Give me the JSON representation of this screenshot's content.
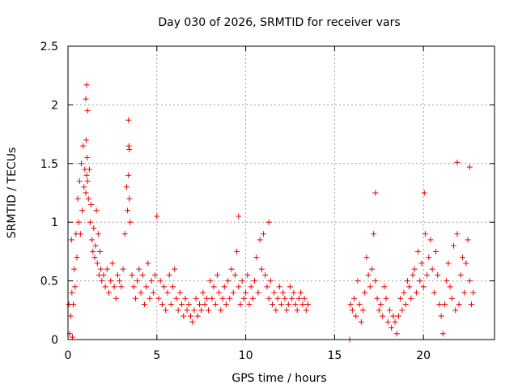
{
  "chart_data": {
    "type": "scatter",
    "title": "Day 030 of 2026, SRMTID for receiver vars",
    "xlabel": "GPS time / hours",
    "ylabel": "SRMTID / TECUs",
    "xlim": [
      0,
      24
    ],
    "ylim": [
      0,
      2.5
    ],
    "xticks": [
      0,
      5,
      10,
      15,
      20
    ],
    "xtick_labels": [
      "0",
      "5",
      "10",
      "15",
      "20"
    ],
    "yticks": [
      0,
      0.5,
      1,
      1.5,
      2,
      2.5
    ],
    "ytick_labels": [
      "0",
      "0.5",
      "1",
      "1.5",
      "2",
      "2.5"
    ],
    "grid": true,
    "marker": "+",
    "color": "#ee0000",
    "series": [
      {
        "name": "SRMTID",
        "x": [
          0.05,
          0.1,
          0.15,
          0.2,
          0.22,
          0.25,
          0.3,
          0.35,
          0.4,
          0.45,
          0.5,
          0.55,
          0.6,
          0.65,
          0.7,
          0.75,
          0.8,
          0.85,
          0.9,
          0.95,
          1.0,
          1.02,
          1.05,
          1.08,
          1.1,
          1.15,
          1.2,
          1.25,
          1.3,
          1.35,
          1.4,
          1.45,
          1.5,
          1.55,
          1.6,
          1.65,
          1.7,
          1.75,
          1.8,
          1.85,
          1.9,
          2.0,
          2.1,
          2.2,
          2.3,
          2.4,
          2.5,
          2.6,
          2.7,
          2.8,
          2.9,
          3.0,
          3.1,
          3.2,
          3.3,
          3.35,
          3.4,
          3.45,
          3.5,
          3.6,
          3.7,
          3.8,
          3.9,
          4.0,
          4.1,
          4.2,
          4.3,
          4.4,
          4.5,
          4.6,
          4.7,
          4.8,
          4.9,
          5.0,
          5.1,
          5.2,
          5.3,
          5.4,
          5.5,
          5.6,
          5.7,
          5.8,
          5.9,
          6.0,
          6.1,
          6.2,
          6.3,
          6.4,
          6.5,
          6.6,
          6.7,
          6.8,
          6.9,
          7.0,
          7.1,
          7.2,
          7.3,
          7.4,
          7.5,
          7.6,
          7.7,
          7.8,
          7.9,
          8.0,
          8.1,
          8.2,
          8.3,
          8.4,
          8.5,
          8.6,
          8.7,
          8.8,
          8.9,
          9.0,
          9.1,
          9.2,
          9.3,
          9.4,
          9.5,
          9.6,
          9.7,
          9.8,
          9.9,
          10.0,
          10.1,
          10.2,
          10.3,
          10.4,
          10.5,
          10.6,
          10.7,
          10.8,
          10.9,
          11.0,
          11.1,
          11.2,
          11.3,
          11.4,
          11.5,
          11.6,
          11.7,
          11.8,
          11.9,
          12.0,
          12.1,
          12.2,
          12.3,
          12.4,
          12.5,
          12.6,
          12.7,
          12.8,
          12.9,
          13.0,
          13.1,
          13.2,
          13.3,
          13.4,
          13.5,
          15.85,
          15.9,
          16.0,
          16.1,
          16.2,
          16.3,
          16.4,
          16.5,
          16.6,
          16.7,
          16.8,
          16.9,
          17.0,
          17.1,
          17.2,
          17.3,
          17.4,
          17.5,
          17.6,
          17.7,
          17.8,
          17.9,
          18.0,
          18.1,
          18.2,
          18.3,
          18.4,
          18.5,
          18.6,
          18.7,
          18.8,
          18.9,
          19.0,
          19.1,
          19.2,
          19.3,
          19.4,
          19.5,
          19.6,
          19.7,
          19.8,
          19.9,
          20.0,
          20.1,
          20.2,
          20.3,
          20.4,
          20.5,
          20.6,
          20.7,
          20.8,
          20.9,
          21.0,
          21.1,
          21.2,
          21.3,
          21.4,
          21.5,
          21.6,
          21.7,
          21.8,
          21.9,
          22.0,
          22.1,
          22.2,
          22.3,
          22.4,
          22.5,
          22.6,
          22.7,
          22.8,
          1.0,
          1.05,
          1.1,
          3.4,
          3.42,
          3.45,
          9.6,
          11.3,
          17.3,
          20.05,
          21.9,
          22.6
        ],
        "y": [
          0.3,
          0.05,
          0.2,
          0.85,
          0.4,
          0.02,
          0.3,
          0.6,
          0.45,
          0.9,
          0.7,
          1.2,
          1.0,
          1.35,
          0.9,
          1.5,
          1.1,
          1.65,
          1.3,
          1.45,
          1.25,
          1.7,
          1.4,
          1.55,
          1.35,
          1.2,
          1.45,
          1.0,
          1.15,
          0.85,
          0.75,
          0.95,
          0.7,
          0.8,
          1.1,
          0.65,
          0.9,
          0.55,
          0.75,
          0.6,
          0.5,
          0.55,
          0.45,
          0.6,
          0.4,
          0.5,
          0.65,
          0.45,
          0.35,
          0.55,
          0.5,
          0.45,
          0.6,
          0.9,
          1.3,
          1.1,
          1.4,
          1.2,
          1.0,
          0.55,
          0.45,
          0.35,
          0.5,
          0.6,
          0.4,
          0.55,
          0.3,
          0.45,
          0.65,
          0.35,
          0.5,
          0.4,
          0.55,
          1.05,
          0.35,
          0.5,
          0.3,
          0.45,
          0.25,
          0.4,
          0.55,
          0.3,
          0.45,
          0.6,
          0.35,
          0.25,
          0.4,
          0.3,
          0.2,
          0.35,
          0.25,
          0.3,
          0.2,
          0.15,
          0.25,
          0.35,
          0.2,
          0.3,
          0.25,
          0.4,
          0.3,
          0.35,
          0.25,
          0.5,
          0.35,
          0.45,
          0.3,
          0.55,
          0.4,
          0.25,
          0.35,
          0.45,
          0.3,
          0.5,
          0.35,
          0.6,
          0.4,
          0.55,
          0.75,
          0.45,
          0.3,
          0.5,
          0.35,
          0.4,
          0.55,
          0.3,
          0.45,
          0.35,
          0.5,
          0.7,
          0.4,
          0.85,
          0.6,
          0.9,
          0.55,
          0.45,
          0.35,
          0.5,
          0.3,
          0.4,
          0.25,
          0.35,
          0.45,
          0.3,
          0.4,
          0.35,
          0.25,
          0.3,
          0.45,
          0.35,
          0.4,
          0.3,
          0.25,
          0.35,
          0.4,
          0.3,
          0.35,
          0.25,
          0.3,
          0.0,
          0.3,
          0.25,
          0.35,
          0.2,
          0.5,
          0.3,
          0.15,
          0.25,
          0.4,
          0.7,
          0.55,
          0.45,
          0.6,
          0.9,
          0.5,
          0.35,
          0.25,
          0.3,
          0.2,
          0.45,
          0.35,
          0.15,
          0.25,
          0.1,
          0.2,
          0.15,
          0.05,
          0.2,
          0.35,
          0.25,
          0.4,
          0.3,
          0.5,
          0.45,
          0.35,
          0.55,
          0.6,
          0.4,
          0.75,
          0.5,
          0.65,
          0.45,
          0.9,
          0.55,
          0.7,
          0.85,
          0.6,
          0.4,
          0.75,
          0.55,
          0.3,
          0.2,
          0.05,
          0.3,
          0.5,
          0.65,
          0.45,
          0.35,
          0.8,
          0.25,
          0.9,
          0.3,
          0.55,
          0.7,
          0.4,
          0.65,
          0.85,
          0.5,
          0.3,
          0.4,
          2.05,
          2.17,
          1.95,
          1.87,
          1.65,
          1.62,
          1.05,
          1.0,
          1.25,
          1.25,
          1.51,
          1.47
        ]
      }
    ]
  }
}
